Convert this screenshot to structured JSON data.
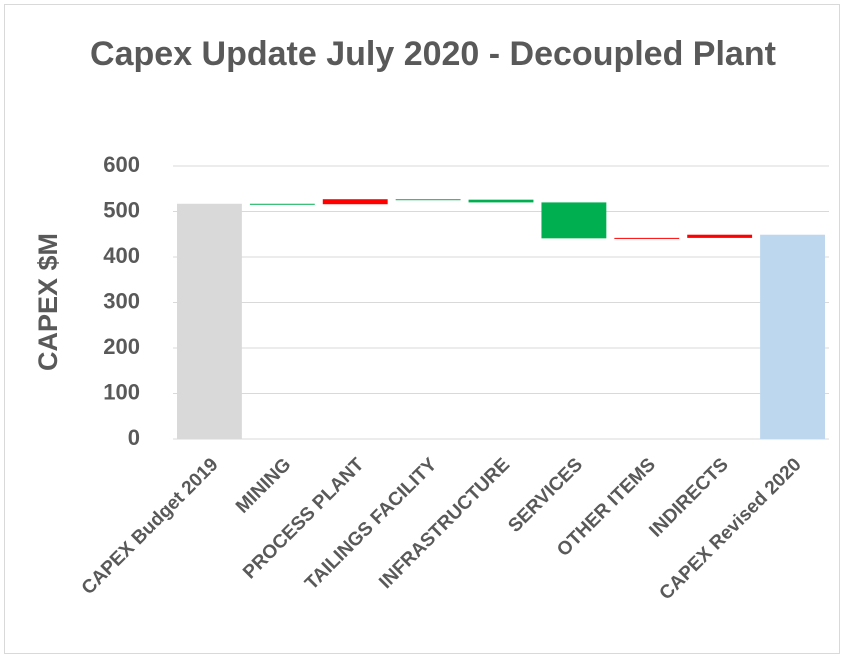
{
  "chart_data": {
    "type": "waterfall",
    "title": "Capex Update July 2020 - Decoupled Plant",
    "y_label": "CAPEX $M",
    "categories": [
      "CAPEX Budget 2019",
      "MINING",
      "PROCESS PLANT",
      "TAILINGS FACILITY",
      "INFRASTRUCTURE",
      "SERVICES",
      "OTHER ITEMS",
      "INDIRECTS",
      "CAPEX Revised 2020"
    ],
    "values": [
      517,
      -1,
      11,
      -1,
      -6,
      -79,
      1,
      7,
      449
    ],
    "totals": [
      true,
      false,
      false,
      false,
      false,
      false,
      false,
      false,
      true
    ],
    "colors": [
      "#d9d9d9",
      "#00b050",
      "#ff0000",
      "#00b050",
      "#00b050",
      "#00b050",
      "#ff0000",
      "#ff0000",
      "#bdd7ee"
    ],
    "ylim": [
      0,
      600
    ],
    "yticks": [
      0,
      100,
      200,
      300,
      400,
      500,
      600
    ],
    "grid": true
  }
}
